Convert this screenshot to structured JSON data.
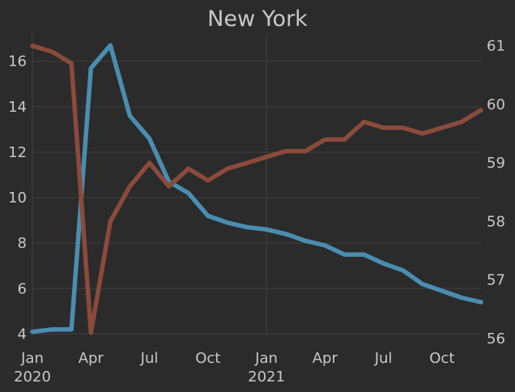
{
  "chart_data": {
    "type": "line",
    "title": "New York",
    "x": [
      "2020-01",
      "2020-02",
      "2020-03",
      "2020-04",
      "2020-05",
      "2020-06",
      "2020-07",
      "2020-08",
      "2020-09",
      "2020-10",
      "2020-11",
      "2020-12",
      "2021-01",
      "2021-02",
      "2021-03",
      "2021-04",
      "2021-05",
      "2021-06",
      "2021-07",
      "2021-08",
      "2021-09",
      "2021-10",
      "2021-11",
      "2021-12"
    ],
    "x_ticks": [
      {
        "x": "2020-01",
        "label": "Jan",
        "sublabel": "2020"
      },
      {
        "x": "2020-04",
        "label": "Apr",
        "sublabel": ""
      },
      {
        "x": "2020-07",
        "label": "Jul",
        "sublabel": ""
      },
      {
        "x": "2020-10",
        "label": "Oct",
        "sublabel": ""
      },
      {
        "x": "2021-01",
        "label": "Jan",
        "sublabel": "2021"
      },
      {
        "x": "2021-04",
        "label": "Apr",
        "sublabel": ""
      },
      {
        "x": "2021-07",
        "label": "Jul",
        "sublabel": ""
      },
      {
        "x": "2021-10",
        "label": "Oct",
        "sublabel": ""
      }
    ],
    "series": [
      {
        "axis": "left",
        "color": "#4a8db0",
        "values": [
          4.1,
          4.2,
          4.2,
          15.7,
          16.7,
          13.6,
          12.6,
          10.7,
          10.2,
          9.2,
          8.9,
          8.7,
          8.6,
          8.4,
          8.1,
          7.9,
          7.5,
          7.5,
          7.1,
          6.8,
          6.2,
          5.9,
          5.6,
          5.4
        ]
      },
      {
        "axis": "right",
        "color": "#8a4a3c",
        "values": [
          61.0,
          60.9,
          60.7,
          56.1,
          58.0,
          58.6,
          59.0,
          58.6,
          58.9,
          58.7,
          58.9,
          59.0,
          59.1,
          59.2,
          59.2,
          59.4,
          59.4,
          59.7,
          59.6,
          59.6,
          59.5,
          59.6,
          59.7,
          59.9
        ]
      }
    ],
    "y_left": {
      "ylim": [
        3.8,
        17.2
      ],
      "ticks": [
        4,
        6,
        8,
        10,
        12,
        14,
        16
      ]
    },
    "y_right": {
      "ylim": [
        56.0,
        61.2
      ],
      "ticks": [
        56,
        57,
        58,
        59,
        60,
        61
      ]
    },
    "grid": true,
    "background": "#2b2b2b"
  }
}
